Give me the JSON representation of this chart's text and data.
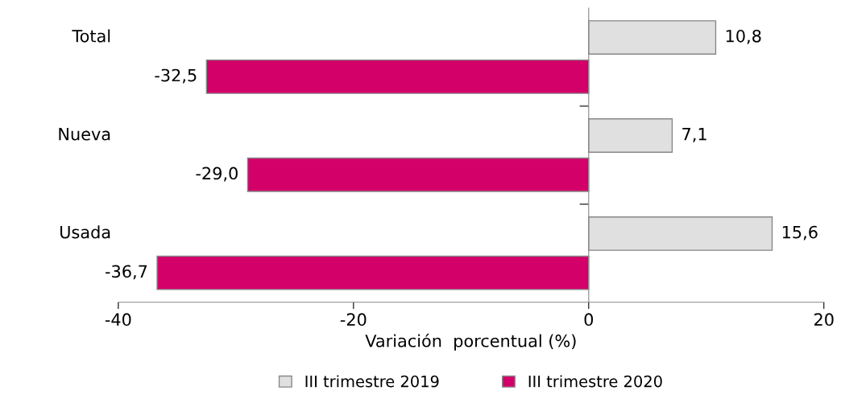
{
  "chart_data": {
    "type": "bar",
    "orientation": "horizontal",
    "categories": [
      "Total",
      "Nueva",
      "Usada"
    ],
    "series": [
      {
        "name": "III trimestre 2019",
        "color": "#e0e0e0",
        "values": [
          10.8,
          7.1,
          15.6
        ],
        "value_labels": [
          "10,8",
          "7,1",
          "15,6"
        ]
      },
      {
        "name": "III trimestre 2020",
        "color": "#d4006a",
        "values": [
          -32.5,
          -29.0,
          -36.7
        ],
        "value_labels": [
          "-32,5",
          "-29,0",
          "-36,7"
        ]
      }
    ],
    "xlim": [
      -40,
      20
    ],
    "xticks": [
      -40,
      -20,
      0,
      20
    ],
    "xlabel": "Variación  porcentual (%)",
    "legend": "bottom"
  }
}
